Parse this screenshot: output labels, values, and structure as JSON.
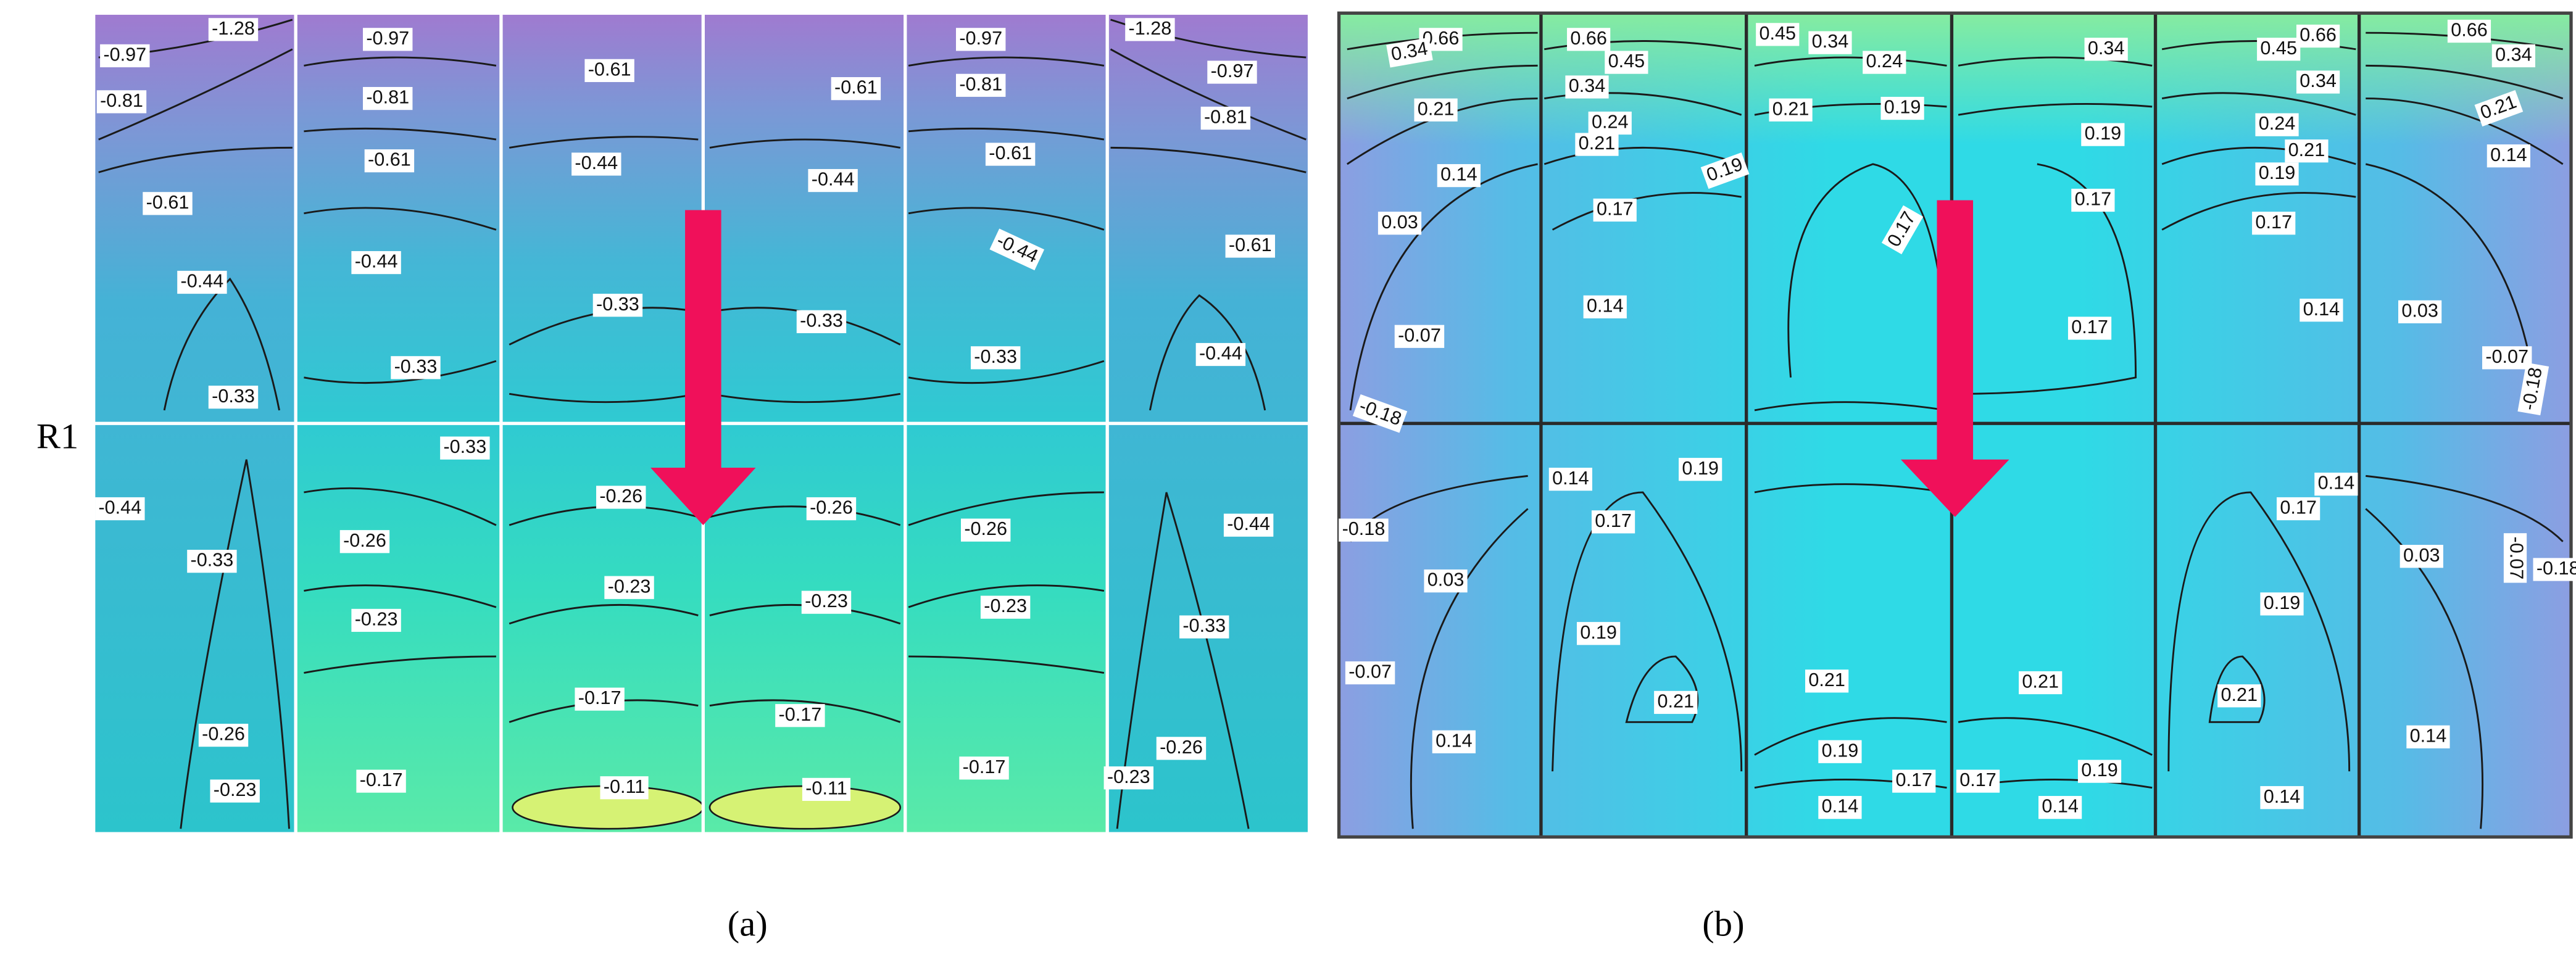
{
  "row_label": "R1",
  "panels": [
    {
      "caption": "(a)",
      "contour_labels": [
        "-1.28",
        "-0.97",
        "-0.97",
        "-0.81",
        "-0.81",
        "-0.61",
        "-0.61",
        "-0.97",
        "-0.81",
        "-1.28",
        "-0.97",
        "-0.81",
        "-0.61",
        "-0.44",
        "-0.44",
        "-0.61",
        "-0.61",
        "-0.44",
        "-0.61",
        "-0.44",
        "-0.44",
        "-0.33",
        "-0.33",
        "-0.33",
        "-0.33",
        "-0.44",
        "-0.33",
        "-0.33",
        "-0.26",
        "-0.26",
        "-0.44",
        "-0.33",
        "-0.26",
        "-0.26",
        "-0.44",
        "-0.23",
        "-0.23",
        "-0.23",
        "-0.23",
        "-0.33",
        "-0.17",
        "-0.17",
        "-0.26",
        "-0.26",
        "-0.23",
        "-0.17",
        "-0.11",
        "-0.11",
        "-0.17",
        "-0.23"
      ]
    },
    {
      "caption": "(b)",
      "contour_labels": [
        "0.66",
        "0.66",
        "0.45",
        "0.34",
        "0.66",
        "0.66",
        "0.34",
        "0.45",
        "0.24",
        "0.34",
        "0.45",
        "0.34",
        "0.34",
        "0.34",
        "0.21",
        "0.24",
        "0.21",
        "0.19",
        "0.21",
        "0.24",
        "0.21",
        "0.21",
        "0.19",
        "0.14",
        "0.19",
        "0.19",
        "0.14",
        "0.17",
        "0.17",
        "0.17",
        "0.03",
        "0.17",
        "0.14",
        "0.14",
        "0.03",
        "-0.07",
        "0.17",
        "-0.07",
        "-0.18",
        "-0.18",
        "0.14",
        "0.19",
        "0.14",
        "0.17",
        "0.17",
        "-0.18",
        "-0.07",
        "0.03",
        "0.03",
        "-0.18",
        "0.19",
        "0.19",
        "-0.07",
        "0.21",
        "0.21",
        "0.21",
        "0.21",
        "0.19",
        "0.19",
        "0.14",
        "0.14",
        "0.17",
        "0.17",
        "0.14",
        "0.14",
        "0.14"
      ]
    }
  ]
}
